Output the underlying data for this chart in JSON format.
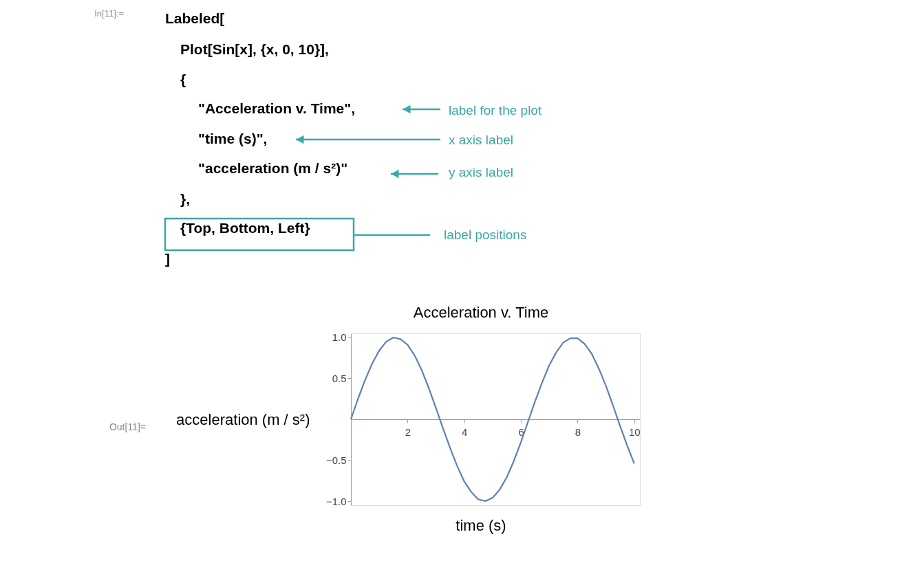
{
  "chart_data": {
    "type": "line",
    "title": "Acceleration v. Time",
    "xlabel": "time (s)",
    "ylabel": "acceleration (m / s²)",
    "annotations": [
      "In[11]:=",
      "Labeled[",
      "Plot[Sin[x], {x, 0, 10}],",
      "{",
      "\"Acceleration v. Time\",",
      "\"time (s)\",",
      "\"acceleration (m / s²)\"",
      "},",
      "{Top, Bottom, Left}",
      "]",
      "label for the plot",
      "x axis label",
      "y axis label",
      "label positions",
      "Out[11]="
    ],
    "x": [
      0,
      0.25,
      0.5,
      0.75,
      1,
      1.25,
      1.5,
      1.75,
      2,
      2.25,
      2.5,
      2.75,
      3,
      3.25,
      3.5,
      3.75,
      4,
      4.25,
      4.5,
      4.75,
      5,
      5.25,
      5.5,
      5.75,
      6,
      6.25,
      6.5,
      6.75,
      7,
      7.25,
      7.5,
      7.75,
      8,
      8.25,
      8.5,
      8.75,
      9,
      9.25,
      9.5,
      9.75,
      10
    ],
    "series": [
      {
        "color": "#5e81b5",
        "values": [
          0,
          0.25,
          0.48,
          0.68,
          0.84,
          0.95,
          1.0,
          0.98,
          0.91,
          0.78,
          0.6,
          0.38,
          0.14,
          -0.11,
          -0.35,
          -0.57,
          -0.76,
          -0.89,
          -0.98,
          -1.0,
          -0.96,
          -0.86,
          -0.71,
          -0.51,
          -0.28,
          -0.03,
          0.22,
          0.45,
          0.66,
          0.82,
          0.94,
          0.99,
          0.99,
          0.92,
          0.8,
          0.62,
          0.41,
          0.17,
          -0.08,
          -0.32,
          -0.54
        ]
      }
    ],
    "xlim": [
      0,
      10.2
    ],
    "ylim": [
      -1.05,
      1.05
    ],
    "xticks": [
      2,
      4,
      6,
      8,
      10
    ],
    "yticks": [
      {
        "value": -1,
        "label": "−1.0"
      },
      {
        "value": -0.5,
        "label": "−0.5"
      },
      {
        "value": 0.5,
        "label": "0.5"
      },
      {
        "value": 1,
        "label": "1.0"
      }
    ],
    "grid": false,
    "marker": "none",
    "line_style": "solid"
  }
}
